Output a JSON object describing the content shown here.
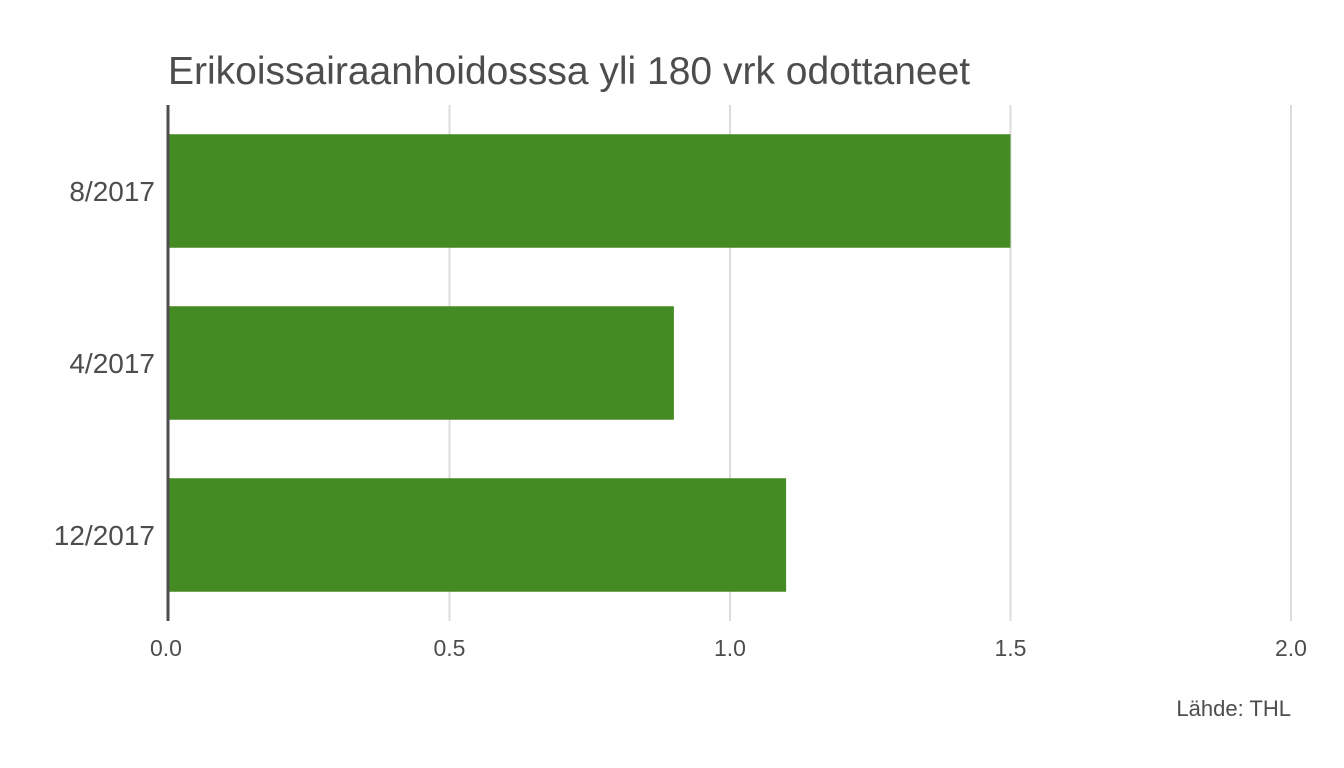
{
  "chart_data": {
    "type": "bar",
    "orientation": "horizontal",
    "title": "Erikoissairaanhoidosssa yli 180 vrk odottaneet",
    "categories": [
      "8/2017",
      "4/2017",
      "12/2017"
    ],
    "values": [
      1.5,
      0.9,
      1.1
    ],
    "xlim": [
      0,
      2.0
    ],
    "xticks": [
      "0.0",
      "0.5",
      "1.0",
      "1.5",
      "2.0"
    ],
    "xlabel": "",
    "ylabel": "",
    "grid": "vertical",
    "caption": "Lähde: THL",
    "bar_color": "#458b24"
  }
}
